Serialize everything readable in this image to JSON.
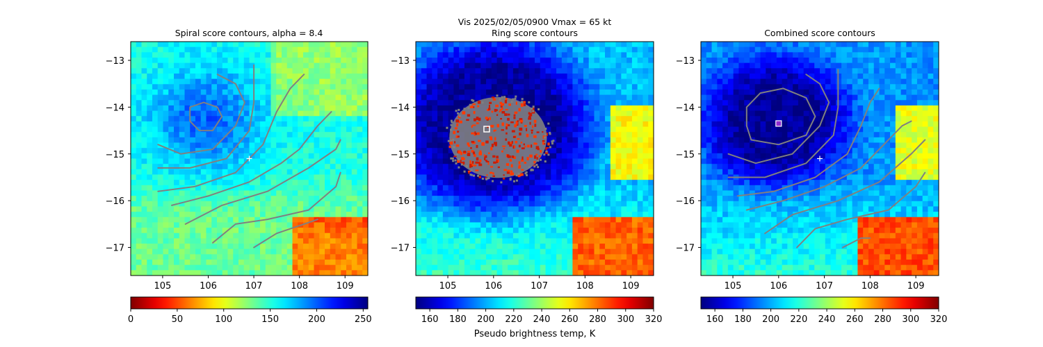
{
  "figure": {
    "suptitle": "Vis  2025/02/05/0900    Vmax = 65 kt",
    "colorbar_label": "Pseudo brightness temp, K"
  },
  "chart_data": [
    {
      "type": "heatmap",
      "title": "Spiral score contours, alpha =  8.4",
      "xlabel": "",
      "ylabel": "",
      "xlim": [
        104.3,
        109.5
      ],
      "ylim": [
        -17.6,
        -12.6
      ],
      "xticks": [
        105,
        106,
        107,
        108,
        109
      ],
      "yticks": [
        -13,
        -14,
        -15,
        -16,
        -17
      ],
      "colormap": "jet_r",
      "colorbar": {
        "range": [
          0,
          255
        ],
        "ticks": [
          0,
          50,
          100,
          150,
          200,
          250
        ]
      },
      "center_marker": {
        "lon": 106.9,
        "lat": -15.1,
        "symbol": "+"
      },
      "contours": [
        [
          [
            105.6,
            -14.0
          ],
          [
            105.9,
            -13.9
          ],
          [
            106.2,
            -14.0
          ],
          [
            106.3,
            -14.2
          ],
          [
            106.1,
            -14.5
          ],
          [
            105.8,
            -14.5
          ],
          [
            105.6,
            -14.3
          ],
          [
            105.6,
            -14.0
          ]
        ],
        [
          [
            104.9,
            -14.8
          ],
          [
            105.4,
            -15.0
          ],
          [
            106.1,
            -14.9
          ],
          [
            106.6,
            -14.4
          ],
          [
            106.8,
            -13.9
          ],
          [
            106.6,
            -13.5
          ],
          [
            106.2,
            -13.3
          ]
        ],
        [
          [
            104.9,
            -15.3
          ],
          [
            105.6,
            -15.3
          ],
          [
            106.4,
            -15.1
          ],
          [
            106.9,
            -14.5
          ],
          [
            107.0,
            -13.9
          ],
          [
            107.0,
            -13.1
          ]
        ],
        [
          [
            104.9,
            -15.8
          ],
          [
            105.7,
            -15.7
          ],
          [
            106.6,
            -15.4
          ],
          [
            107.2,
            -14.8
          ],
          [
            107.5,
            -14.1
          ],
          [
            107.8,
            -13.6
          ],
          [
            108.1,
            -13.3
          ]
        ],
        [
          [
            105.2,
            -16.1
          ],
          [
            106.0,
            -15.9
          ],
          [
            106.9,
            -15.6
          ],
          [
            107.6,
            -15.2
          ],
          [
            108.0,
            -14.9
          ],
          [
            108.4,
            -14.4
          ],
          [
            108.7,
            -14.1
          ]
        ],
        [
          [
            105.5,
            -16.5
          ],
          [
            106.3,
            -16.1
          ],
          [
            107.3,
            -15.8
          ],
          [
            108.2,
            -15.3
          ],
          [
            108.8,
            -14.9
          ],
          [
            108.9,
            -14.7
          ]
        ],
        [
          [
            106.1,
            -16.9
          ],
          [
            106.6,
            -16.5
          ],
          [
            107.3,
            -16.4
          ],
          [
            108.2,
            -16.2
          ],
          [
            108.8,
            -15.7
          ],
          [
            108.9,
            -15.4
          ]
        ],
        [
          [
            107.0,
            -17.0
          ],
          [
            107.5,
            -16.7
          ],
          [
            108.1,
            -16.5
          ],
          [
            108.4,
            -16.4
          ]
        ]
      ]
    },
    {
      "type": "heatmap",
      "title": "Ring score contours",
      "xlabel": "",
      "ylabel": "",
      "xlim": [
        104.3,
        109.5
      ],
      "ylim": [
        -17.6,
        -12.6
      ],
      "xticks": [
        105,
        106,
        107,
        108,
        109
      ],
      "yticks": [
        -13,
        -14,
        -15,
        -16,
        -17
      ],
      "colormap": "jet",
      "colorbar": {
        "range": [
          150,
          320
        ],
        "ticks": [
          160,
          180,
          200,
          220,
          240,
          260,
          280,
          300,
          320
        ]
      },
      "center_marker": {
        "lon": 105.85,
        "lat": -14.47,
        "symbol": "square"
      },
      "ring_region": {
        "center_lon": 106.1,
        "center_lat": -14.65,
        "radius_lon": 1.1,
        "radius_lat": 0.9
      },
      "contours": []
    },
    {
      "type": "heatmap",
      "title": "Combined score contours",
      "xlabel": "",
      "ylabel": "",
      "xlim": [
        104.3,
        109.5
      ],
      "ylim": [
        -17.6,
        -12.6
      ],
      "xticks": [
        105,
        106,
        107,
        108,
        109
      ],
      "yticks": [
        -13,
        -14,
        -15,
        -16,
        -17
      ],
      "colormap": "jet",
      "colorbar": {
        "range": [
          150,
          320
        ],
        "ticks": [
          160,
          180,
          200,
          220,
          240,
          260,
          280,
          300,
          320
        ]
      },
      "center_marker": {
        "lon": 106.9,
        "lat": -15.1,
        "symbol": "+"
      },
      "combined_marker": {
        "lon": 106.0,
        "lat": -14.35,
        "symbol": "square"
      },
      "contours": [
        [
          [
            105.3,
            -14.0
          ],
          [
            105.6,
            -13.7
          ],
          [
            106.1,
            -13.6
          ],
          [
            106.6,
            -13.8
          ],
          [
            106.8,
            -14.2
          ],
          [
            106.6,
            -14.6
          ],
          [
            106.0,
            -14.8
          ],
          [
            105.4,
            -14.7
          ],
          [
            105.3,
            -14.4
          ],
          [
            105.3,
            -14.0
          ]
        ],
        [
          [
            104.9,
            -15.0
          ],
          [
            105.5,
            -15.2
          ],
          [
            106.3,
            -15.0
          ],
          [
            106.9,
            -14.4
          ],
          [
            107.1,
            -13.9
          ],
          [
            106.9,
            -13.5
          ],
          [
            106.6,
            -13.3
          ]
        ],
        [
          [
            104.9,
            -15.5
          ],
          [
            105.7,
            -15.5
          ],
          [
            106.6,
            -15.2
          ],
          [
            107.2,
            -14.6
          ],
          [
            107.3,
            -14.0
          ],
          [
            107.3,
            -13.2
          ]
        ],
        [
          [
            105.1,
            -15.9
          ],
          [
            105.9,
            -15.8
          ],
          [
            106.8,
            -15.5
          ],
          [
            107.5,
            -15.0
          ],
          [
            107.8,
            -14.4
          ],
          [
            108.0,
            -13.9
          ],
          [
            108.2,
            -13.6
          ]
        ],
        [
          [
            105.3,
            -16.2
          ],
          [
            106.1,
            -16.0
          ],
          [
            107.0,
            -15.7
          ],
          [
            107.8,
            -15.3
          ],
          [
            108.3,
            -14.8
          ],
          [
            108.7,
            -14.4
          ],
          [
            108.9,
            -14.3
          ]
        ],
        [
          [
            105.7,
            -16.7
          ],
          [
            106.3,
            -16.3
          ],
          [
            107.3,
            -16.0
          ],
          [
            108.2,
            -15.6
          ],
          [
            108.9,
            -15.0
          ],
          [
            109.2,
            -14.7
          ]
        ],
        [
          [
            106.4,
            -17.0
          ],
          [
            106.8,
            -16.6
          ],
          [
            107.5,
            -16.4
          ],
          [
            108.4,
            -16.2
          ],
          [
            109.0,
            -15.7
          ],
          [
            109.2,
            -15.4
          ]
        ],
        [
          [
            107.4,
            -17.0
          ],
          [
            107.8,
            -16.8
          ],
          [
            108.0,
            -16.8
          ]
        ]
      ]
    }
  ]
}
